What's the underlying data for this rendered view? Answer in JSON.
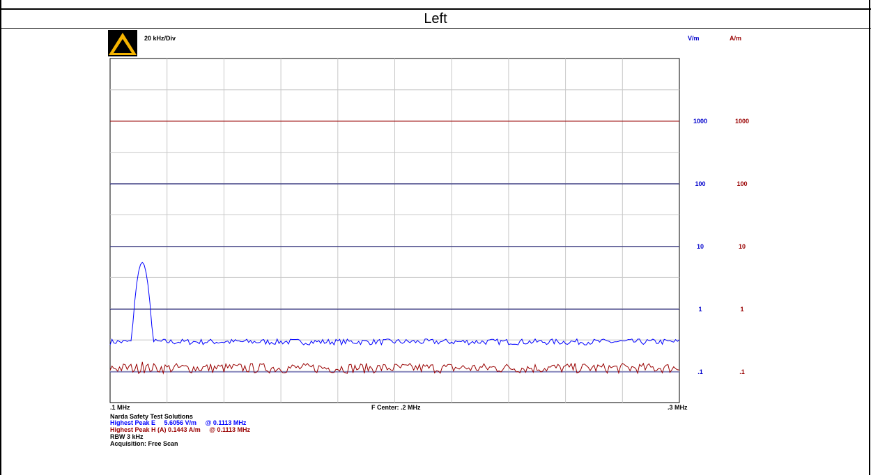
{
  "panel": {
    "title": "Left"
  },
  "scale": {
    "per_div": "20 kHz/Div"
  },
  "chart_data": {
    "type": "line",
    "title": "",
    "xlabel": "",
    "ylabel": "",
    "x_range_mhz": [
      0.1,
      0.3
    ],
    "x_tick_labels": {
      "left": ".1 MHz",
      "center": "F Center: .2 MHz",
      "right": ".3 MHz"
    },
    "y_scale": "log",
    "y_range": [
      0.09,
      4000
    ],
    "y_ticks": [
      {
        "value": 1000,
        "e_label": "1000",
        "h_label": "1000"
      },
      {
        "value": 100,
        "e_label": "100",
        "h_label": "100"
      },
      {
        "value": 10,
        "e_label": "10",
        "h_label": "10"
      },
      {
        "value": 1,
        "e_label": "1",
        "h_label": "1"
      },
      {
        "value": 0.1,
        "e_label": ".1",
        "h_label": ".1"
      }
    ],
    "unit_headers": {
      "e": "V/m",
      "h": "A/m"
    },
    "grid": true,
    "series": [
      {
        "color": "#0000ff",
        "baseline": 0.3,
        "peak": {
          "x": 0.1113,
          "y": 5.6056,
          "width_mhz": 0.0022
        },
        "noise_factor": [
          0.9,
          1.12
        ]
      },
      {
        "color": "#990000",
        "baseline": 0.11,
        "peak": {
          "x": 0.1113,
          "y": 0.1443,
          "width_mhz": 0.0008
        },
        "noise_factor": [
          0.86,
          1.25
        ]
      }
    ]
  },
  "info": {
    "company": "Narda Safety Test Solutions",
    "peak_e": "Highest Peak E     5.6056 V/m     @ 0.1113 MHz",
    "peak_h": "Highest Peak H (A) 0.1443 A/m     @ 0.1113 MHz",
    "rbw": "RBW 3 kHz",
    "acquisition": "Acquisition: Free Scan"
  },
  "colors": {
    "e_field": "#0000ff",
    "h_field": "#990000",
    "grid": "#c8c8c8",
    "warning": "#f5b400"
  }
}
